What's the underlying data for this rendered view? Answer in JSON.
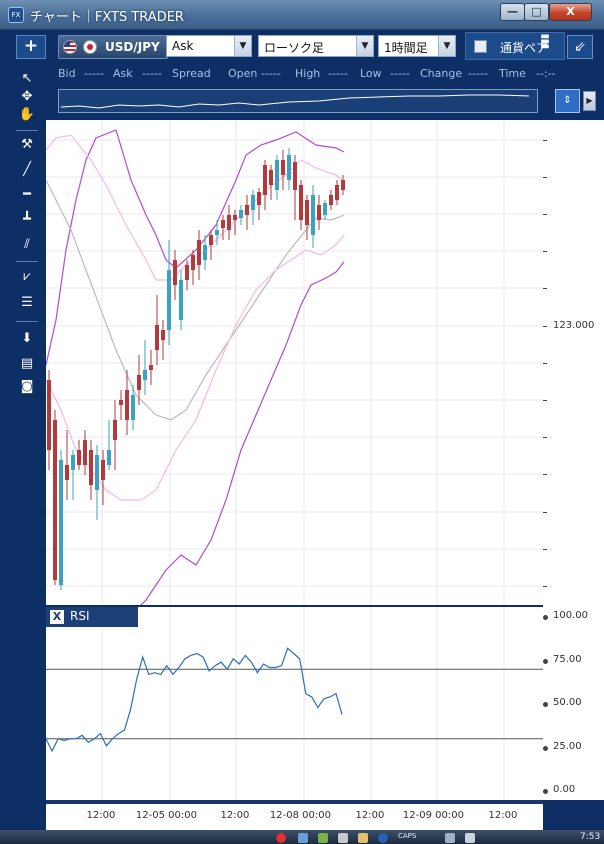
{
  "window": {
    "title": "チャート｜FXTS TRADER",
    "app_icon_text": "FX",
    "minimize_glyph": "—",
    "maximize_glyph": "□",
    "close_glyph": "X"
  },
  "toolbar": {
    "add_label": "+",
    "symbol": "USD/JPY",
    "price_type": "Ask",
    "chart_type": "ローソク足",
    "timeframe": "1時間足",
    "pair_label": "通貨ペア",
    "collapse_glyph": "⇙"
  },
  "quotes": {
    "bid_label": "Bid",
    "bid_value": "-----",
    "ask_label": "Ask",
    "ask_value": "-----",
    "spread_label": "Spread",
    "open_label": "Open",
    "open_value": "-----",
    "high_label": "High",
    "high_value": "-----",
    "low_label": "Low",
    "low_value": "-----",
    "change_label": "Change",
    "change_value": "-----",
    "time_label": "Time",
    "time_value": "--:--"
  },
  "mini": {
    "left_arrow": "◀",
    "right_arrow": "▶",
    "corner_glyph": "⇕"
  },
  "rsi": {
    "close_glyph": "X",
    "title": "RSI"
  },
  "colors": {
    "bull": "#3ba3c2",
    "bear": "#b23a3a",
    "outer_band": "#b24cc8",
    "inner_band": "#f4b8ef",
    "ma": "#bbbbbb",
    "rsi_line": "#2a6eb8",
    "frame": "#0e2f66"
  },
  "chart_data": [
    {
      "type": "candlestick",
      "price_axis_label": "123.000",
      "x_ticks": [
        "12:00",
        "12-05 00:00",
        "12:00",
        "12-08 00:00",
        "12:00",
        "12-09 00:00",
        "12:00"
      ],
      "legend": "none",
      "grid": true
    },
    {
      "type": "line",
      "title": "RSI",
      "y_ticks": [
        "100.00",
        "75.00",
        "50.00",
        "25.00",
        "0.00"
      ],
      "ylim": [
        0,
        100
      ],
      "reference_lines": [
        70,
        30
      ],
      "series": [
        {
          "values": [
            30,
            23,
            30,
            29,
            30,
            30,
            32,
            28,
            30,
            33,
            26,
            30,
            33,
            35,
            47,
            64,
            77,
            67,
            68,
            67,
            72,
            67,
            71,
            76,
            78,
            79,
            77,
            69,
            72,
            74,
            70,
            76,
            73,
            78,
            74,
            68,
            73,
            71,
            71,
            72,
            82,
            79,
            76,
            56,
            54,
            48,
            53,
            54,
            56,
            44
          ]
        }
      ]
    }
  ],
  "taskbar": {
    "caps": "CAPS",
    "clock": "7:53"
  }
}
